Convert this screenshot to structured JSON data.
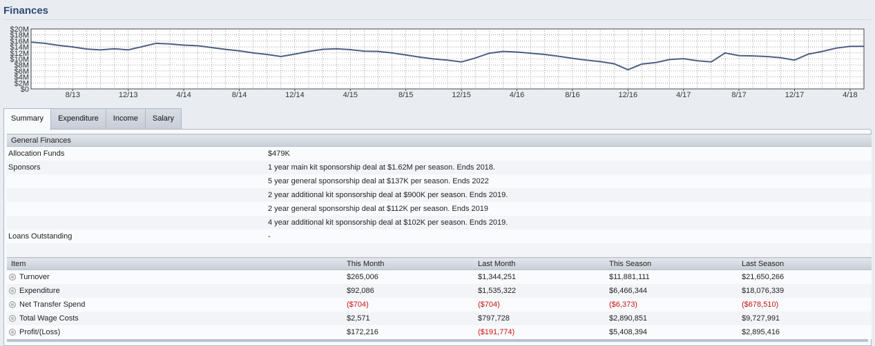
{
  "page_title": "Finances",
  "chart_data": {
    "type": "line",
    "y_tick_labels": [
      "$20M",
      "$18M",
      "$16M",
      "$14M",
      "$12M",
      "$10M",
      "$8M",
      "$6M",
      "$4M",
      "$2M",
      "$0"
    ],
    "x_tick_labels": [
      "8/13",
      "12/13",
      "4/14",
      "8/14",
      "12/14",
      "4/15",
      "8/15",
      "12/15",
      "4/16",
      "8/16",
      "12/16",
      "4/17",
      "8/17",
      "12/17",
      "4/18"
    ],
    "ylim": [
      0,
      20
    ],
    "x_months_total": 60,
    "first_tick_month": 3,
    "line_color": "#4a5f82",
    "grid": true,
    "values": [
      15.6,
      15.2,
      14.5,
      14.0,
      13.3,
      13.0,
      13.4,
      13.0,
      14.1,
      15.2,
      15.0,
      14.6,
      14.4,
      13.8,
      13.2,
      12.7,
      12.0,
      11.5,
      10.8,
      11.6,
      12.5,
      13.2,
      13.4,
      13.1,
      12.6,
      12.5,
      12.0,
      11.3,
      10.6,
      10.0,
      9.6,
      9.0,
      10.3,
      11.9,
      12.5,
      12.3,
      11.9,
      11.5,
      10.9,
      10.2,
      9.6,
      9.1,
      8.4,
      6.4,
      8.3,
      8.8,
      9.8,
      10.1,
      9.4,
      9.0,
      12.0,
      11.1,
      11.0,
      10.8,
      10.4,
      9.6,
      11.6,
      12.5,
      13.6,
      14.2,
      14.2
    ]
  },
  "tabs": [
    {
      "label": "Summary",
      "active": true
    },
    {
      "label": "Expenditure",
      "active": false
    },
    {
      "label": "Income",
      "active": false
    },
    {
      "label": "Salary",
      "active": false
    }
  ],
  "general": {
    "header": "General Finances",
    "allocation_label": "Allocation Funds",
    "allocation_value": "$479K",
    "sponsors_label": "Sponsors",
    "sponsors": [
      "1 year main kit sponsorship deal at $1.62M per season. Ends 2018.",
      "5 year general sponsorship deal at $137K per season. Ends 2022",
      "2 year additional kit sponsorship deal at $900K per season. Ends 2019.",
      "2 year general sponsorship deal at $112K per season. Ends 2019",
      "4 year additional kit sponsorship deal at $102K per season. Ends 2019."
    ],
    "loans_label": "Loans Outstanding",
    "loans_value": "-"
  },
  "finance_table": {
    "headers": [
      "Item",
      "This Month",
      "Last Month",
      "This Season",
      "Last Season"
    ],
    "rows": [
      {
        "item": "Turnover",
        "values": [
          "$265,006",
          "$1,344,251",
          "$11,881,111",
          "$21,650,266"
        ],
        "negative": [
          false,
          false,
          false,
          false
        ]
      },
      {
        "item": "Expenditure",
        "values": [
          "$92,086",
          "$1,535,322",
          "$6,466,344",
          "$18,076,339"
        ],
        "negative": [
          false,
          false,
          false,
          false
        ]
      },
      {
        "item": "Net Transfer Spend",
        "values": [
          "($704)",
          "($704)",
          "($6,373)",
          "($678,510)"
        ],
        "negative": [
          true,
          true,
          true,
          true
        ]
      },
      {
        "item": "Total Wage Costs",
        "values": [
          "$2,571",
          "$797,728",
          "$2,890,851",
          "$9,727,991"
        ],
        "negative": [
          false,
          false,
          false,
          false
        ]
      },
      {
        "item": "Profit/(Loss)",
        "values": [
          "$172,216",
          "($191,774)",
          "$5,408,394",
          "$2,895,416"
        ],
        "negative": [
          false,
          true,
          false,
          false
        ]
      }
    ]
  }
}
